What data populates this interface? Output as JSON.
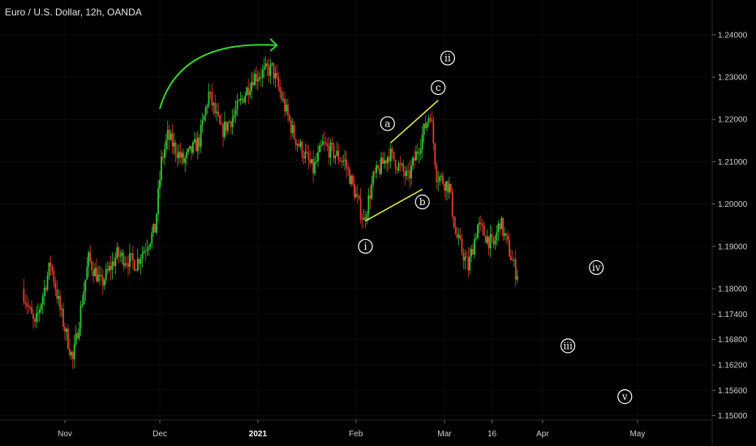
{
  "header": {
    "title": "Euro / U.S. Dollar, 12h, OANDA"
  },
  "colors": {
    "up": "#2fcb2f",
    "down": "#e23b2e",
    "annotation_line": "#f2f252",
    "arrow": "#2fd42f",
    "background": "#000000"
  },
  "chart_data": {
    "type": "candlestick",
    "title": "Euro / U.S. Dollar, 12h, OANDA",
    "ylim": [
      1.148,
      1.246
    ],
    "y_ticks": [
      "1.24000",
      "1.23000",
      "1.22000",
      "1.21000",
      "1.20000",
      "1.19000",
      "1.18000",
      "1.17400",
      "1.16800",
      "1.16200",
      "1.15600",
      "1.15000"
    ],
    "x_labels": [
      "Nov",
      "Dec",
      "2021",
      "Feb",
      "Mar",
      "16",
      "Apr",
      "May"
    ],
    "x_dates": [
      "2020-11-01",
      "2020-12-01",
      "2021-01-01",
      "2021-02-01",
      "2021-03-01",
      "2021-03-16",
      "2021-04-01",
      "2021-05-01"
    ],
    "price_path": [
      {
        "date": "2020-10-19",
        "price": 1.18
      },
      {
        "date": "2020-10-23",
        "price": 1.171
      },
      {
        "date": "2020-10-28",
        "price": 1.186
      },
      {
        "date": "2020-10-31",
        "price": 1.175
      },
      {
        "date": "2020-11-04",
        "price": 1.163
      },
      {
        "date": "2020-11-09",
        "price": 1.187
      },
      {
        "date": "2020-11-13",
        "price": 1.181
      },
      {
        "date": "2020-11-18",
        "price": 1.188
      },
      {
        "date": "2020-11-24",
        "price": 1.186
      },
      {
        "date": "2020-11-30",
        "price": 1.194
      },
      {
        "date": "2020-12-02",
        "price": 1.21
      },
      {
        "date": "2020-12-04",
        "price": 1.216
      },
      {
        "date": "2020-12-09",
        "price": 1.21
      },
      {
        "date": "2020-12-14",
        "price": 1.215
      },
      {
        "date": "2020-12-17",
        "price": 1.226
      },
      {
        "date": "2020-12-21",
        "price": 1.217
      },
      {
        "date": "2020-12-25",
        "price": 1.221
      },
      {
        "date": "2020-12-31",
        "price": 1.23
      },
      {
        "date": "2021-01-06",
        "price": 1.232
      },
      {
        "date": "2021-01-13",
        "price": 1.216
      },
      {
        "date": "2021-01-19",
        "price": 1.208
      },
      {
        "date": "2021-01-22",
        "price": 1.214
      },
      {
        "date": "2021-01-29",
        "price": 1.21
      },
      {
        "date": "2021-02-04",
        "price": 1.196
      },
      {
        "date": "2021-02-07",
        "price": 1.206
      },
      {
        "date": "2021-02-12",
        "price": 1.212
      },
      {
        "date": "2021-02-18",
        "price": 1.206
      },
      {
        "date": "2021-02-22",
        "price": 1.215
      },
      {
        "date": "2021-02-25",
        "price": 1.222
      },
      {
        "date": "2021-02-27",
        "price": 1.207
      },
      {
        "date": "2021-03-03",
        "price": 1.204
      },
      {
        "date": "2021-03-05",
        "price": 1.193
      },
      {
        "date": "2021-03-09",
        "price": 1.185
      },
      {
        "date": "2021-03-12",
        "price": 1.195
      },
      {
        "date": "2021-03-17",
        "price": 1.19
      },
      {
        "date": "2021-03-19",
        "price": 1.196
      },
      {
        "date": "2021-03-24",
        "price": 1.184
      }
    ],
    "annotations": {
      "wave_labels": [
        {
          "label": "i",
          "date": "2021-02-04",
          "price": 1.19
        },
        {
          "label": "a",
          "date": "2021-02-11",
          "price": 1.219
        },
        {
          "label": "b",
          "date": "2021-02-22",
          "price": 1.2005
        },
        {
          "label": "c",
          "date": "2021-02-27",
          "price": 1.2275
        },
        {
          "label": "ii",
          "date": "2021-03-02",
          "price": 1.2345
        },
        {
          "label": "iii",
          "date": "2021-04-09",
          "price": 1.1665
        },
        {
          "label": "iv",
          "date": "2021-04-18",
          "price": 1.185
        },
        {
          "label": "v",
          "date": "2021-04-27",
          "price": 1.1545
        }
      ],
      "channel_lines": [
        {
          "from": {
            "date": "2021-02-04",
            "price": 1.196
          },
          "to": {
            "date": "2021-02-22",
            "price": 1.2035
          }
        },
        {
          "from": {
            "date": "2021-02-12",
            "price": 1.2145
          },
          "to": {
            "date": "2021-02-27",
            "price": 1.2245
          }
        }
      ],
      "arrow": {
        "from": {
          "date": "2020-12-01",
          "price": 1.2225
        },
        "to": {
          "date": "2021-01-07",
          "price": 1.2375
        }
      }
    }
  }
}
